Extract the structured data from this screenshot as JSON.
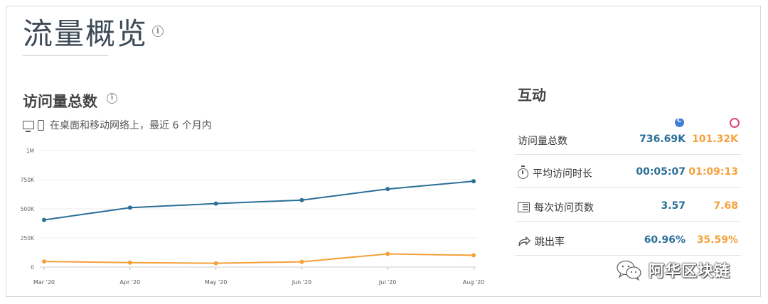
{
  "page": {
    "title": "流量概览"
  },
  "visits_section": {
    "title": "访问量总数",
    "subtitle": "在桌面和移动网络上，最近 6 个月内"
  },
  "chart_data": {
    "type": "line",
    "categories": [
      "Mar '20",
      "Apr '20",
      "May '20",
      "Jun '20",
      "Jul '20",
      "Aug '20"
    ],
    "yticks": [
      "0",
      "250K",
      "500K",
      "750K",
      "1M"
    ],
    "ylim": [
      0,
      1000000
    ],
    "series": [
      {
        "values": [
          405000,
          510000,
          545000,
          575000,
          670000,
          737000
        ],
        "color": "#2a6f97"
      },
      {
        "values": [
          48000,
          38000,
          33000,
          45000,
          113000,
          101000
        ],
        "color": "#f5a03a"
      }
    ],
    "grid": true
  },
  "engagement": {
    "title": "互动",
    "site_icons": [
      "site-a-icon",
      "site-b-icon"
    ],
    "rows": [
      {
        "label": "访问量总数",
        "icon": "",
        "v1": "736.69K",
        "v2": "101.32K"
      },
      {
        "label": "平均访问时长",
        "icon": "timer-icon",
        "v1": "00:05:07",
        "v2": "01:09:13"
      },
      {
        "label": "每次访问页数",
        "icon": "pages-icon",
        "v1": "3.57",
        "v2": "7.68"
      },
      {
        "label": "跳出率",
        "icon": "bounce-icon",
        "v1": "60.96%",
        "v2": "35.59%"
      }
    ]
  },
  "watermark": {
    "text": "阿华区块链"
  }
}
